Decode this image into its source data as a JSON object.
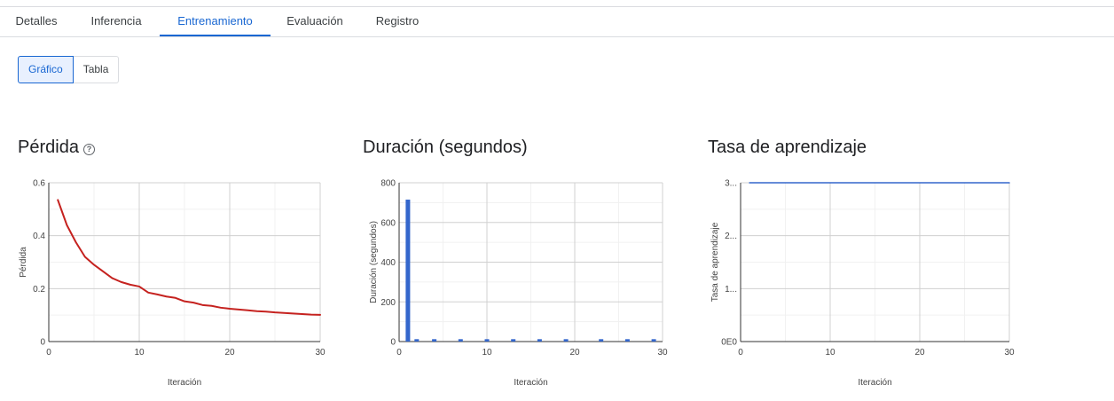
{
  "tabs": [
    {
      "label": "Detalles"
    },
    {
      "label": "Inferencia"
    },
    {
      "label": "Entrenamiento"
    },
    {
      "label": "Evaluación"
    },
    {
      "label": "Registro"
    }
  ],
  "active_tab": "Entrenamiento",
  "view_toggle": {
    "graph_label": "Gráfico",
    "table_label": "Tabla",
    "selected": "Gráfico"
  },
  "colors": {
    "loss_line": "#c5221f",
    "accent": "#1967d2",
    "bar": "#3366cc",
    "lr_line": "#3366cc"
  },
  "chart_data": [
    {
      "type": "line",
      "title": "Pérdida",
      "xlabel": "Iteración",
      "ylabel": "Pérdida",
      "xlim": [
        0,
        30
      ],
      "ylim": [
        0,
        0.6
      ],
      "xticks": [
        "0",
        "10",
        "20",
        "30"
      ],
      "yticks": [
        "0",
        "0.2",
        "0.4",
        "0.6"
      ],
      "series": [
        {
          "x": [
            1,
            2,
            3,
            4,
            5,
            6,
            7,
            8,
            9,
            10,
            11,
            12,
            13,
            14,
            15,
            16,
            17,
            18,
            19,
            20,
            21,
            22,
            23,
            24,
            25,
            26,
            27,
            28,
            29,
            30
          ],
          "values": [
            0.535,
            0.44,
            0.375,
            0.32,
            0.29,
            0.265,
            0.24,
            0.225,
            0.215,
            0.208,
            0.185,
            0.178,
            0.17,
            0.165,
            0.152,
            0.147,
            0.138,
            0.135,
            0.128,
            0.124,
            0.121,
            0.118,
            0.115,
            0.113,
            0.11,
            0.108,
            0.106,
            0.104,
            0.102,
            0.101
          ]
        }
      ]
    },
    {
      "type": "bar",
      "title": "Duración (segundos)",
      "xlabel": "Iteración",
      "ylabel": "Duración (segundos)",
      "xlim": [
        0,
        30
      ],
      "ylim": [
        0,
        800
      ],
      "xticks": [
        "0",
        "10",
        "20",
        "30"
      ],
      "yticks": [
        "0",
        "200",
        "400",
        "600",
        "800"
      ],
      "series": [
        {
          "x": [
            1,
            2,
            4,
            7,
            10,
            13,
            16,
            19,
            23,
            26,
            29
          ],
          "values": [
            715,
            12,
            12,
            12,
            12,
            12,
            12,
            12,
            12,
            12,
            12
          ]
        }
      ]
    },
    {
      "type": "line",
      "title": "Tasa de aprendizaje",
      "xlabel": "Iteración",
      "ylabel": "Tasa de aprendizaje",
      "xlim": [
        0,
        30
      ],
      "ylim": [
        0,
        3
      ],
      "xticks": [
        "0",
        "10",
        "20",
        "30"
      ],
      "yticks": [
        "0E0",
        "1...",
        "2...",
        "3..."
      ],
      "series": [
        {
          "x": [
            1,
            30
          ],
          "values": [
            3,
            3
          ]
        }
      ]
    }
  ]
}
